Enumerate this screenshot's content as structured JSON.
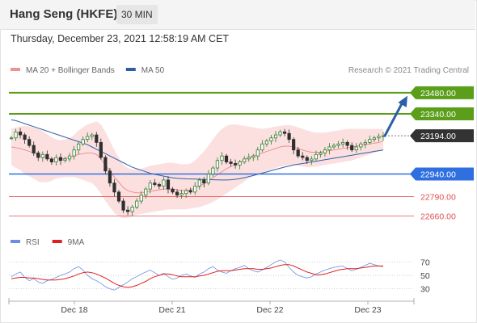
{
  "header": {
    "title": "Hang Seng (HKFE)",
    "timeframe": "30 MIN",
    "timestamp": "Thursday, December 23, 2021 12:58:19 AM CET"
  },
  "colors": {
    "resistance": "#5a9e1a",
    "support": "#2f6fe0",
    "target_support": "#e05050",
    "current": "#333333",
    "ma50": "#2c5fa8",
    "bollinger_fill": "#fbd6d6",
    "ma20": "#e88a8a",
    "candle_up": "#2e7d32",
    "candle_down": "#2f2f2f",
    "rsi": "#6a8fe0",
    "rsi_ma": "#e02020",
    "arrow": "#2c5fa8"
  },
  "chart_data": [
    {
      "type": "candlestick",
      "legend": [
        {
          "name": "MA 20 + Bollinger Bands",
          "color": "#f09090"
        },
        {
          "name": "MA 50",
          "color": "#2c5fa8"
        }
      ],
      "credit": "Research © 2021 Trading Central",
      "x_labels": [
        "Dec 18",
        "Dec 21",
        "Dec 22",
        "Dec 23"
      ],
      "y_range": [
        22540,
        23560
      ],
      "levels": [
        {
          "value": 23480.0,
          "label": "23480.00",
          "kind": "resistance"
        },
        {
          "value": 23340.0,
          "label": "23340.00",
          "kind": "resistance"
        },
        {
          "value": 23194.0,
          "label": "23194.00",
          "kind": "current"
        },
        {
          "value": 22940.0,
          "label": "22940.00",
          "kind": "support"
        },
        {
          "value": 22790.0,
          "label": "22790.00",
          "kind": "target"
        },
        {
          "value": 22660.0,
          "label": "22660.00",
          "kind": "target"
        }
      ],
      "arrow": {
        "from": 23194,
        "to": 23460
      },
      "close": [
        23180,
        23220,
        23200,
        23170,
        23130,
        23080,
        23050,
        23070,
        23040,
        23020,
        23050,
        23030,
        23040,
        23060,
        23100,
        23140,
        23170,
        23190,
        23200,
        23150,
        23050,
        22960,
        22880,
        22820,
        22760,
        22700,
        22690,
        22720,
        22760,
        22800,
        22840,
        22880,
        22870,
        22860,
        22900,
        22840,
        22820,
        22800,
        22810,
        22830,
        22820,
        22860,
        22900,
        22880,
        22940,
        22980,
        23030,
        23060,
        23020,
        23010,
        23000,
        23020,
        23040,
        23050,
        23060,
        23100,
        23140,
        23160,
        23180,
        23200,
        23220,
        23210,
        23170,
        23100,
        23060,
        23050,
        23030,
        23040,
        23070,
        23080,
        23100,
        23120,
        23130,
        23140,
        23150,
        23130,
        23100,
        23120,
        23140,
        23150,
        23170,
        23180,
        23190,
        23194
      ],
      "ma20": [
        23120,
        23115,
        23110,
        23100,
        23090,
        23080,
        23065,
        23055,
        23045,
        23040,
        23040,
        23040,
        23045,
        23050,
        23060,
        23070,
        23075,
        23080,
        23080,
        23070,
        23040,
        23000,
        22960,
        22920,
        22885,
        22850,
        22830,
        22820,
        22815,
        22815,
        22820,
        22825,
        22830,
        22835,
        22840,
        22840,
        22838,
        22835,
        22830,
        22830,
        22835,
        22845,
        22860,
        22875,
        22895,
        22915,
        22935,
        22955,
        22975,
        22990,
        23005,
        23020,
        23035,
        23050,
        23060,
        23070,
        23080,
        23090,
        23100,
        23110,
        23120,
        23125,
        23125,
        23120,
        23110,
        23100,
        23090,
        23085,
        23085,
        23085,
        23090,
        23095,
        23100,
        23105,
        23110,
        23115,
        23120,
        23125,
        23130,
        23135,
        23140,
        23145,
        23150,
        23160
      ],
      "bb_upper": [
        23240,
        23250,
        23255,
        23260,
        23255,
        23250,
        23240,
        23225,
        23205,
        23185,
        23170,
        23165,
        23170,
        23180,
        23200,
        23230,
        23250,
        23270,
        23280,
        23290,
        23270,
        23220,
        23160,
        23100,
        23050,
        23000,
        22980,
        22970,
        22970,
        22975,
        22985,
        22995,
        23000,
        23005,
        23010,
        23015,
        23015,
        23010,
        23005,
        23005,
        23010,
        23030,
        23060,
        23090,
        23130,
        23170,
        23210,
        23240,
        23260,
        23270,
        23270,
        23265,
        23260,
        23255,
        23250,
        23245,
        23240,
        23245,
        23250,
        23255,
        23260,
        23265,
        23265,
        23260,
        23250,
        23240,
        23230,
        23220,
        23215,
        23215,
        23215,
        23220,
        23225,
        23230,
        23235,
        23240,
        23240,
        23240,
        23240,
        23240,
        23240,
        23240,
        23240,
        23240
      ],
      "bb_lower": [
        23000,
        22980,
        22965,
        22940,
        22925,
        22910,
        22890,
        22885,
        22885,
        22895,
        22910,
        22915,
        22920,
        22920,
        22920,
        22910,
        22900,
        22890,
        22880,
        22850,
        22810,
        22760,
        22720,
        22680,
        22660,
        22645,
        22650,
        22660,
        22670,
        22675,
        22680,
        22685,
        22690,
        22695,
        22700,
        22705,
        22705,
        22705,
        22705,
        22705,
        22710,
        22715,
        22720,
        22730,
        22740,
        22755,
        22770,
        22790,
        22810,
        22830,
        22850,
        22870,
        22890,
        22910,
        22925,
        22940,
        22950,
        22960,
        22970,
        22980,
        22990,
        22995,
        23000,
        23000,
        22995,
        22990,
        22985,
        22985,
        22990,
        22995,
        23000,
        23005,
        23010,
        23015,
        23020,
        23025,
        23030,
        23040,
        23050,
        23060,
        23070,
        23080,
        23090,
        23100
      ],
      "ma50": [
        23300,
        23295,
        23285,
        23275,
        23265,
        23255,
        23245,
        23235,
        23225,
        23215,
        23205,
        23195,
        23185,
        23175,
        23165,
        23155,
        23145,
        23135,
        23120,
        23105,
        23090,
        23075,
        23060,
        23045,
        23030,
        23015,
        23000,
        22985,
        22975,
        22965,
        22955,
        22945,
        22938,
        22932,
        22926,
        22920,
        22915,
        22912,
        22910,
        22908,
        22907,
        22906,
        22905,
        22904,
        22903,
        22902,
        22901,
        22900,
        22900,
        22902,
        22905,
        22910,
        22916,
        22923,
        22930,
        22938,
        22946,
        22954,
        22962,
        22970,
        22978,
        22986,
        22993,
        23000,
        23005,
        23010,
        23015,
        23020,
        23025,
        23030,
        23035,
        23040,
        23045,
        23050,
        23055,
        23060,
        23065,
        23070,
        23075,
        23080,
        23085,
        23090,
        23095,
        23100
      ]
    },
    {
      "type": "line",
      "legend": [
        {
          "name": "RSI",
          "color": "#6a8fe0"
        },
        {
          "name": "9MA",
          "color": "#e02020"
        }
      ],
      "y_ticks": [
        70,
        50,
        30
      ],
      "y_range": [
        15,
        85
      ],
      "rsi": [
        48,
        52,
        55,
        47,
        42,
        45,
        40,
        38,
        42,
        44,
        47,
        50,
        52,
        55,
        60,
        63,
        58,
        50,
        45,
        42,
        38,
        33,
        30,
        28,
        32,
        36,
        40,
        45,
        48,
        52,
        55,
        58,
        54,
        50,
        53,
        48,
        44,
        46,
        50,
        52,
        49,
        47,
        52,
        55,
        60,
        63,
        58,
        55,
        53,
        57,
        60,
        62,
        65,
        60,
        57,
        55,
        58,
        62,
        66,
        70,
        73,
        70,
        62,
        55,
        50,
        48,
        46,
        48,
        52,
        55,
        58,
        60,
        62,
        63,
        64,
        60,
        57,
        59,
        62,
        65,
        68,
        66,
        64,
        63
      ],
      "ma9": [
        45,
        46,
        47,
        47,
        46,
        46,
        45,
        44,
        43,
        43,
        43,
        44,
        45,
        47,
        49,
        52,
        54,
        55,
        54,
        52,
        49,
        46,
        42,
        38,
        35,
        33,
        32,
        33,
        35,
        38,
        41,
        45,
        48,
        50,
        52,
        52,
        51,
        49,
        48,
        48,
        48,
        48,
        49,
        50,
        52,
        54,
        56,
        57,
        57,
        57,
        58,
        59,
        60,
        60,
        60,
        59,
        59,
        60,
        61,
        63,
        65,
        66,
        66,
        64,
        61,
        58,
        55,
        53,
        51,
        51,
        52,
        54,
        56,
        58,
        59,
        60,
        60,
        60,
        61,
        62,
        63,
        64,
        64,
        64
      ]
    }
  ]
}
